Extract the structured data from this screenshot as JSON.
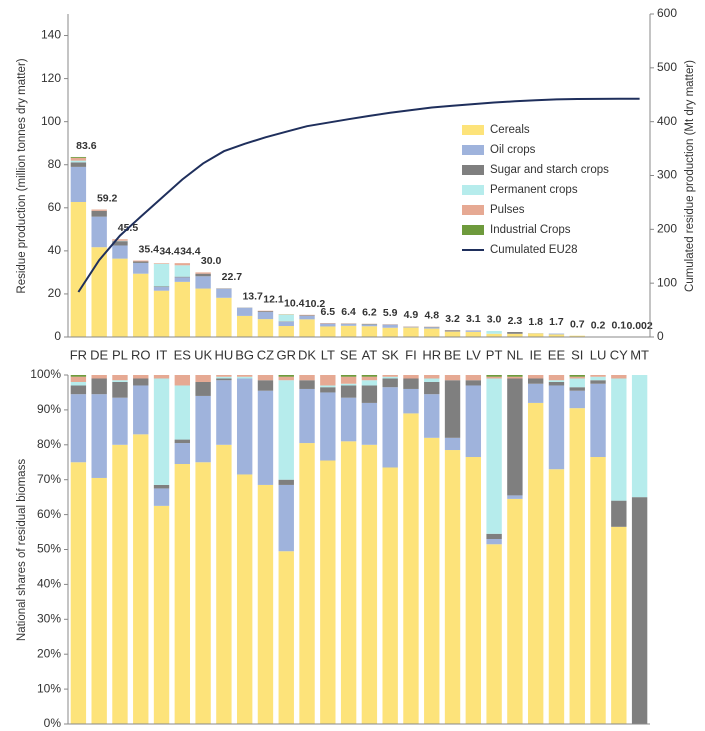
{
  "chart_data": [
    {
      "type": "bar",
      "stacked": true,
      "ylabel": "Residue production (million tonnes dry matter)",
      "y2label": "Cumulated residue production (Mt dry matter)",
      "categories": [
        "FR",
        "DE",
        "PL",
        "RO",
        "IT",
        "ES",
        "UK",
        "HU",
        "BG",
        "CZ",
        "GR",
        "DK",
        "LT",
        "SE",
        "AT",
        "SK",
        "FI",
        "HR",
        "BE",
        "LV",
        "PT",
        "NL",
        "IE",
        "EE",
        "SI",
        "LU",
        "CY",
        "MT"
      ],
      "ylim": [
        0,
        150
      ],
      "yticks": [
        0,
        20,
        40,
        60,
        80,
        100,
        120,
        140
      ],
      "y2lim": [
        0,
        600
      ],
      "y2ticks": [
        0,
        100,
        200,
        300,
        400,
        500,
        600
      ],
      "legend": "center right",
      "totals": [
        83.6,
        59.2,
        45.5,
        35.4,
        34.4,
        34.4,
        30.0,
        22.7,
        13.7,
        12.1,
        10.4,
        10.2,
        6.5,
        6.4,
        6.2,
        5.9,
        4.9,
        4.8,
        3.2,
        3.1,
        3.0,
        2.3,
        1.8,
        1.7,
        0.7,
        0.2,
        0.1,
        0.002
      ],
      "total_labels": [
        "83.6",
        "59.2",
        "45.5",
        "35.4",
        "34.4",
        "34.4",
        "30.0",
        "22.7",
        "13.7",
        "12.1",
        "10.4",
        "10.2",
        "6.5",
        "6.4",
        "6.2",
        "5.9",
        "4.9",
        "4.8",
        "3.2",
        "3.1",
        "3.0",
        "2.3",
        "1.8",
        "1.7",
        "0.7",
        "0.2",
        "0.1",
        "0.002"
      ],
      "series": [
        {
          "name": "Cereals",
          "color": "#fde37a",
          "values": [
            62.7,
            41.7,
            36.4,
            29.4,
            21.5,
            25.6,
            22.5,
            18.2,
            9.8,
            8.3,
            5.1,
            8.2,
            4.9,
            5.2,
            5.0,
            4.3,
            4.4,
            3.9,
            2.5,
            2.4,
            1.5,
            1.5,
            1.7,
            1.2,
            0.6,
            0.2,
            0.1,
            0
          ]
        },
        {
          "name": "Oil crops",
          "color": "#9fb3dc",
          "values": [
            16.3,
            14.2,
            6.1,
            5.0,
            1.7,
            2.1,
            5.7,
            4.2,
            3.8,
            3.3,
            2.0,
            1.6,
            1.3,
            0.8,
            0.7,
            1.4,
            0.3,
            0.6,
            0.1,
            0.6,
            0,
            0,
            0.1,
            0.4,
            0,
            0,
            0,
            0
          ]
        },
        {
          "name": "Sugar and starch crops",
          "color": "#7f7f7f",
          "values": [
            2.1,
            2.7,
            2.0,
            0.7,
            0.3,
            0.3,
            1.2,
            0.1,
            0,
            0.4,
            0.2,
            0.3,
            0.1,
            0.2,
            0.3,
            0.1,
            0.1,
            0.2,
            0.5,
            0,
            0,
            0.8,
            0,
            0,
            0,
            0,
            0,
            0
          ]
        },
        {
          "name": "Permanent crops",
          "color": "#b6ecec",
          "values": [
            0.8,
            0,
            0.2,
            0,
            10.5,
            5.3,
            0,
            0.1,
            0.1,
            0,
            3.0,
            0,
            0,
            0,
            0.1,
            0,
            0,
            0,
            0,
            0,
            1.3,
            0,
            0,
            0,
            0,
            0,
            0,
            0
          ]
        },
        {
          "name": "Pulses",
          "color": "#e6a993",
          "values": [
            1.3,
            0.6,
            0.7,
            0.4,
            0.3,
            1.0,
            0.6,
            0.1,
            0.1,
            0.2,
            0.1,
            0.2,
            0.2,
            0.1,
            0.1,
            0.1,
            0.1,
            0.1,
            0.1,
            0.1,
            0,
            0,
            0,
            0,
            0,
            0,
            0,
            0
          ]
        },
        {
          "name": "Industrial Crops",
          "color": "#6e9a3c",
          "values": [
            0.4,
            0,
            0,
            0,
            0,
            0,
            0,
            0,
            0,
            0,
            0.1,
            0,
            0,
            0,
            0,
            0,
            0,
            0,
            0,
            0,
            0,
            0,
            0,
            0,
            0,
            0,
            0,
            0
          ]
        },
        {
          "name": "Cumulated EU28",
          "color": "#1f2f5c",
          "type": "line",
          "axis": "y2",
          "values": [
            83.6,
            142.8,
            188.3,
            223.7,
            258.1,
            292.5,
            322.5,
            345.2,
            358.9,
            371.0,
            381.4,
            391.6,
            398.1,
            404.5,
            410.7,
            416.6,
            421.5,
            426.3,
            429.5,
            432.6,
            435.6,
            437.9,
            439.7,
            441.4,
            442.1,
            442.3,
            442.4,
            442.4
          ]
        }
      ]
    },
    {
      "type": "bar",
      "stacked": true,
      "ylabel": "National shares of residual biomass",
      "ylim": [
        0,
        100
      ],
      "yticks": [
        {
          "value": 0,
          "label": "0%"
        },
        {
          "value": 10,
          "label": "10%"
        },
        {
          "value": 20,
          "label": "20%"
        },
        {
          "value": 30,
          "label": "30%"
        },
        {
          "value": 40,
          "label": "40%"
        },
        {
          "value": 50,
          "label": "50%"
        },
        {
          "value": 60,
          "label": "60%"
        },
        {
          "value": 70,
          "label": "70%"
        },
        {
          "value": 80,
          "label": "80%"
        },
        {
          "value": 90,
          "label": "90%"
        },
        {
          "value": 100,
          "label": "100%"
        }
      ],
      "series": [
        {
          "color": "#fde37a",
          "values": [
            75,
            70.5,
            80,
            83,
            62.5,
            74.5,
            75,
            80,
            71.5,
            68.5,
            49.5,
            80.5,
            75.5,
            81,
            80,
            73.5,
            89,
            82,
            78.5,
            76.5,
            51.5,
            64.5,
            92,
            73,
            90.5,
            76.5,
            56.5,
            0
          ]
        },
        {
          "color": "#9fb3dc",
          "values": [
            19.5,
            24,
            13.5,
            14,
            5,
            6,
            19,
            18.5,
            27.5,
            27,
            19,
            15.5,
            19.5,
            12.5,
            12,
            23,
            7,
            12.5,
            3.5,
            20.5,
            1.5,
            1,
            5.5,
            24,
            5,
            21,
            0,
            0
          ]
        },
        {
          "color": "#7f7f7f",
          "values": [
            2.5,
            4.5,
            4.5,
            2,
            1,
            1,
            4,
            0.5,
            0,
            3,
            1.5,
            2.5,
            1.5,
            3.5,
            5,
            2.5,
            3,
            3.5,
            16.5,
            1.5,
            1.5,
            33.5,
            1.5,
            1,
            1,
            1,
            7.5,
            65
          ]
        },
        {
          "color": "#b6ecec",
          "values": [
            1,
            0,
            0.5,
            0,
            30.5,
            15.5,
            0,
            0.5,
            0.5,
            0,
            28.5,
            0,
            0.5,
            0.5,
            1.5,
            0.5,
            0,
            1,
            0,
            0,
            44.5,
            0,
            0,
            0.5,
            2.5,
            1,
            35,
            35
          ]
        },
        {
          "color": "#e6a993",
          "values": [
            1.5,
            1,
            1.5,
            1,
            1,
            3,
            2,
            0.5,
            0.5,
            1.5,
            1,
            1.5,
            3,
            2,
            1,
            0.5,
            1,
            1,
            1.5,
            1.5,
            0.5,
            0.5,
            1,
            1.5,
            0.5,
            0.5,
            1,
            0
          ]
        },
        {
          "color": "#6e9a3c",
          "values": [
            0.5,
            0,
            0,
            0,
            0,
            0,
            0,
            0,
            0,
            0,
            0.5,
            0,
            0,
            0.5,
            0.5,
            0,
            0,
            0,
            0,
            0,
            0.5,
            0.5,
            0,
            0,
            0.5,
            0,
            0,
            0
          ]
        }
      ]
    }
  ]
}
